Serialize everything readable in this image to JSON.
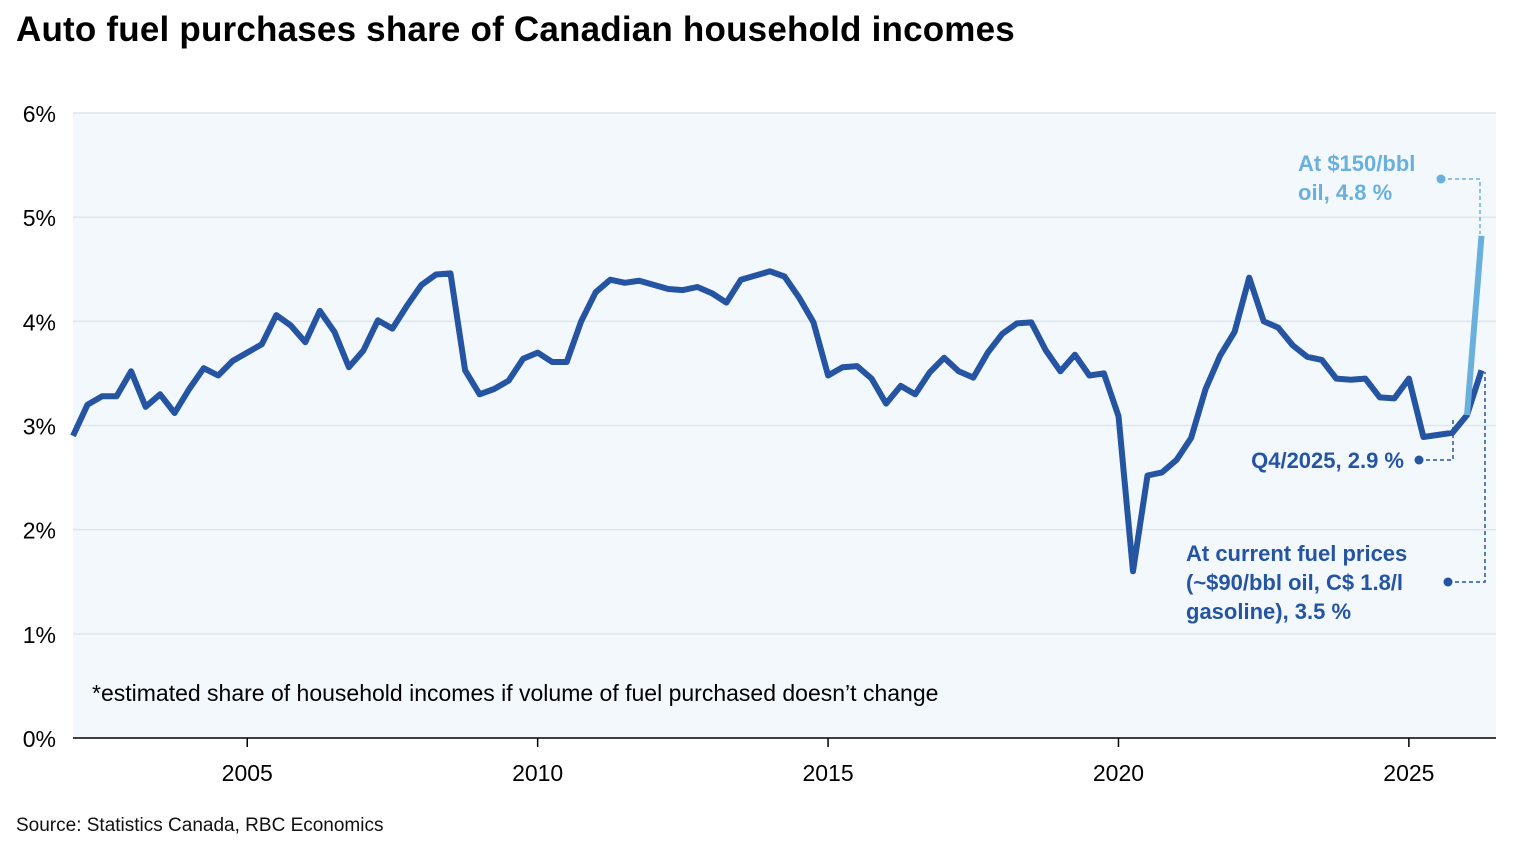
{
  "chart_data": {
    "type": "line",
    "title": "Auto fuel purchases share of Canadian household incomes",
    "source": "Source: Statistics Canada, RBC Economics",
    "footnote": "*estimated share of household incomes if volume of fuel purchased doesn’t change",
    "xlabel": "",
    "ylabel": "",
    "xlim": [
      2002.0,
      2026.5
    ],
    "ylim": [
      0,
      6
    ],
    "x_ticks": [
      2005,
      2010,
      2015,
      2020,
      2025
    ],
    "y_ticks": [
      0,
      1,
      2,
      3,
      4,
      5,
      6
    ],
    "y_tick_labels": [
      "0%",
      "1%",
      "2%",
      "3%",
      "4%",
      "5%",
      "6%"
    ],
    "grid": true,
    "colors": {
      "main": "#2554a3",
      "scenario_high": "#6ab0dc",
      "plot_bg": "#f3f8fc",
      "grid": "#dde6ee"
    },
    "series": [
      {
        "color": "#2554a3",
        "x": [
          2002.0,
          2002.25,
          2002.5,
          2002.75,
          2003.0,
          2003.25,
          2003.5,
          2003.75,
          2004.0,
          2004.25,
          2004.5,
          2004.75,
          2005.0,
          2005.25,
          2005.5,
          2005.75,
          2006.0,
          2006.25,
          2006.5,
          2006.75,
          2007.0,
          2007.25,
          2007.5,
          2007.75,
          2008.0,
          2008.25,
          2008.5,
          2008.75,
          2009.0,
          2009.25,
          2009.5,
          2009.75,
          2010.0,
          2010.25,
          2010.5,
          2010.75,
          2011.0,
          2011.25,
          2011.5,
          2011.75,
          2012.0,
          2012.25,
          2012.5,
          2012.75,
          2013.0,
          2013.25,
          2013.5,
          2013.75,
          2014.0,
          2014.25,
          2014.5,
          2014.75,
          2015.0,
          2015.25,
          2015.5,
          2015.75,
          2016.0,
          2016.25,
          2016.5,
          2016.75,
          2017.0,
          2017.25,
          2017.5,
          2017.75,
          2018.0,
          2018.25,
          2018.5,
          2018.75,
          2019.0,
          2019.25,
          2019.5,
          2019.75,
          2020.0,
          2020.25,
          2020.5,
          2020.75,
          2021.0,
          2021.25,
          2021.5,
          2021.75,
          2022.0,
          2022.25,
          2022.5,
          2022.75,
          2023.0,
          2023.25,
          2023.5,
          2023.75,
          2024.0,
          2024.25,
          2024.5,
          2024.75,
          2025.0,
          2025.25,
          2025.5,
          2025.75,
          2026.0,
          2026.25
        ],
        "values": [
          2.9,
          3.2,
          3.28,
          3.28,
          3.52,
          3.18,
          3.3,
          3.12,
          3.35,
          3.55,
          3.48,
          3.62,
          3.7,
          3.78,
          4.06,
          3.96,
          3.8,
          4.1,
          3.9,
          3.56,
          3.72,
          4.01,
          3.93,
          4.15,
          4.35,
          4.45,
          4.46,
          3.53,
          3.3,
          3.35,
          3.43,
          3.64,
          3.7,
          3.61,
          3.61,
          4.0,
          4.28,
          4.4,
          4.37,
          4.39,
          4.35,
          4.31,
          4.3,
          4.33,
          4.27,
          4.18,
          4.4,
          4.44,
          4.48,
          4.43,
          4.23,
          3.99,
          3.48,
          3.56,
          3.57,
          3.45,
          3.21,
          3.38,
          3.3,
          3.51,
          3.65,
          3.52,
          3.46,
          3.7,
          3.88,
          3.98,
          3.99,
          3.72,
          3.52,
          3.68,
          3.48,
          3.5,
          3.09,
          1.6,
          2.52,
          2.55,
          2.67,
          2.88,
          3.35,
          3.67,
          3.9,
          4.42,
          4.0,
          3.94,
          3.77,
          3.66,
          3.63,
          3.45,
          3.44,
          3.45,
          3.27,
          3.26,
          3.45,
          2.89,
          2.91,
          2.93,
          3.1,
          3.53
        ]
      },
      {
        "color": "#6ab0dc",
        "x": [
          2026.0,
          2026.25
        ],
        "values": [
          3.1,
          4.82
        ]
      }
    ],
    "annotations": [
      {
        "lines": [
          "At $150/bbl",
          "oil, 4.8 %"
        ],
        "color": "#6ab0dc"
      },
      {
        "lines": [
          "Q4/2025, 2.9 %"
        ],
        "color": "#2554a3"
      },
      {
        "lines": [
          "At current fuel prices",
          "(~$90/bbl oil, C$ 1.8/l",
          "gasoline), 3.5 %"
        ],
        "color": "#2554a3"
      }
    ]
  }
}
